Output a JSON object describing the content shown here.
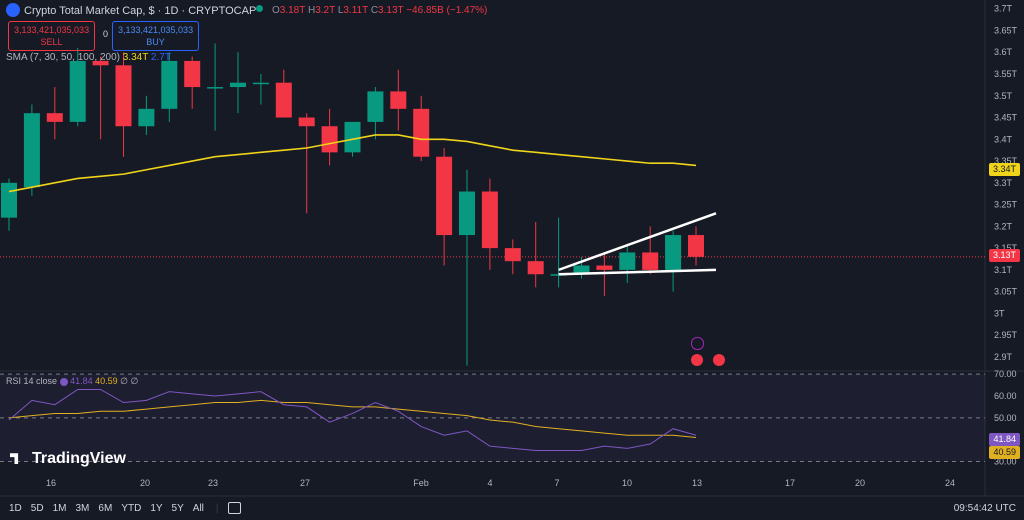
{
  "header": {
    "title": "Crypto Total Market Cap, $ · 1D · CRYPTOCAP",
    "ohlc": {
      "o_label": "O",
      "o": "3.18T",
      "h_label": "H",
      "h": "3.2T",
      "l_label": "L",
      "l": "3.11T",
      "c_label": "C",
      "c": "3.13T",
      "change": "−46.85B (−1.47%)"
    },
    "sell_price": "3,133,421,035,033",
    "sell_label": "SELL",
    "spread": "0",
    "buy_price": "3,133,421,035,033",
    "buy_label": "BUY",
    "sma_label": "SMA (7, 30, 50, 100, 200)",
    "sma_value1": "3.34T",
    "sma_value2": "2.7T"
  },
  "rsi": {
    "label": "RSI 14 close",
    "value1": "41.84",
    "value2": "40.59",
    "extra": "∅ ∅"
  },
  "watermark": "TradingView",
  "toolbar": {
    "ranges": [
      "1D",
      "5D",
      "1M",
      "3M",
      "6M",
      "YTD",
      "1Y",
      "5Y",
      "All"
    ],
    "time": "09:54:42 UTC"
  },
  "colors": {
    "up": "#089981",
    "down": "#f23645",
    "sma": "#f0d41a",
    "rsi": "#7e57c2",
    "rsi_ma": "#e0b020",
    "bg": "#161a25"
  },
  "chart_data": [
    {
      "type": "candlestick",
      "title": "Crypto Total Market Cap, $",
      "y_ticks": [
        "3.7T",
        "3.65T",
        "3.6T",
        "3.55T",
        "3.5T",
        "3.45T",
        "3.4T",
        "3.35T",
        "3.3T",
        "3.25T",
        "3.2T",
        "3.15T",
        "3.1T",
        "3.05T",
        "3T",
        "2.95T",
        "2.9T"
      ],
      "ylim": [
        2.87,
        3.72
      ],
      "x_ticks": [
        "16",
        "20",
        "23",
        "27",
        "Feb",
        "4",
        "7",
        "10",
        "13",
        "17",
        "20",
        "24"
      ],
      "current_price": "3.13T",
      "sma_current": "3.34T",
      "candles": [
        {
          "o": 3.22,
          "h": 3.31,
          "l": 3.19,
          "c": 3.3
        },
        {
          "o": 3.29,
          "h": 3.48,
          "l": 3.27,
          "c": 3.46
        },
        {
          "o": 3.46,
          "h": 3.52,
          "l": 3.4,
          "c": 3.44
        },
        {
          "o": 3.44,
          "h": 3.61,
          "l": 3.43,
          "c": 3.58
        },
        {
          "o": 3.58,
          "h": 3.59,
          "l": 3.4,
          "c": 3.57
        },
        {
          "o": 3.57,
          "h": 3.6,
          "l": 3.36,
          "c": 3.43
        },
        {
          "o": 3.43,
          "h": 3.5,
          "l": 3.41,
          "c": 3.47
        },
        {
          "o": 3.47,
          "h": 3.6,
          "l": 3.44,
          "c": 3.58
        },
        {
          "o": 3.58,
          "h": 3.59,
          "l": 3.47,
          "c": 3.52
        },
        {
          "o": 3.52,
          "h": 3.62,
          "l": 3.42,
          "c": 3.52
        },
        {
          "o": 3.52,
          "h": 3.6,
          "l": 3.46,
          "c": 3.53
        },
        {
          "o": 3.53,
          "h": 3.55,
          "l": 3.48,
          "c": 3.53
        },
        {
          "o": 3.53,
          "h": 3.56,
          "l": 3.45,
          "c": 3.45
        },
        {
          "o": 3.45,
          "h": 3.46,
          "l": 3.23,
          "c": 3.43
        },
        {
          "o": 3.43,
          "h": 3.47,
          "l": 3.34,
          "c": 3.37
        },
        {
          "o": 3.37,
          "h": 3.44,
          "l": 3.36,
          "c": 3.44
        },
        {
          "o": 3.44,
          "h": 3.52,
          "l": 3.4,
          "c": 3.51
        },
        {
          "o": 3.51,
          "h": 3.56,
          "l": 3.42,
          "c": 3.47
        },
        {
          "o": 3.47,
          "h": 3.5,
          "l": 3.35,
          "c": 3.36
        },
        {
          "o": 3.36,
          "h": 3.38,
          "l": 3.11,
          "c": 3.18
        },
        {
          "o": 3.18,
          "h": 3.33,
          "l": 2.88,
          "c": 3.28
        },
        {
          "o": 3.28,
          "h": 3.31,
          "l": 3.1,
          "c": 3.15
        },
        {
          "o": 3.15,
          "h": 3.17,
          "l": 3.09,
          "c": 3.12
        },
        {
          "o": 3.12,
          "h": 3.21,
          "l": 3.06,
          "c": 3.09
        },
        {
          "o": 3.09,
          "h": 3.22,
          "l": 3.06,
          "c": 3.09
        },
        {
          "o": 3.09,
          "h": 3.13,
          "l": 3.08,
          "c": 3.11
        },
        {
          "o": 3.11,
          "h": 3.14,
          "l": 3.04,
          "c": 3.1
        },
        {
          "o": 3.1,
          "h": 3.16,
          "l": 3.07,
          "c": 3.14
        },
        {
          "o": 3.14,
          "h": 3.2,
          "l": 3.09,
          "c": 3.1
        },
        {
          "o": 3.1,
          "h": 3.19,
          "l": 3.05,
          "c": 3.18
        },
        {
          "o": 3.18,
          "h": 3.2,
          "l": 3.11,
          "c": 3.13
        }
      ],
      "sma": [
        3.28,
        3.29,
        3.3,
        3.31,
        3.315,
        3.32,
        3.33,
        3.34,
        3.35,
        3.36,
        3.365,
        3.37,
        3.375,
        3.38,
        3.39,
        3.4,
        3.41,
        3.41,
        3.4,
        3.4,
        3.395,
        3.385,
        3.375,
        3.37,
        3.365,
        3.36,
        3.355,
        3.35,
        3.345,
        3.345,
        3.34
      ],
      "trendlines": [
        {
          "from": [
            24,
            3.1
          ],
          "to": [
            30,
            3.23
          ]
        },
        {
          "from": [
            24,
            3.09
          ],
          "to": [
            30,
            3.1
          ]
        }
      ]
    },
    {
      "type": "line",
      "title": "RSI 14 close",
      "y_ticks": [
        "70.00",
        "60.00",
        "50.00",
        "40.00",
        "30.00"
      ],
      "ylim": [
        27,
        71
      ],
      "rsi": [
        49,
        58,
        56,
        63,
        63,
        57,
        58,
        62,
        61,
        60,
        61,
        62,
        56,
        55,
        48,
        52,
        57,
        53,
        46,
        42,
        44,
        37,
        36,
        35,
        35,
        35,
        37,
        36,
        38,
        45,
        42
      ],
      "rsi_ma": [
        50,
        51,
        52,
        52,
        53,
        53,
        54,
        55,
        56,
        57,
        57,
        58,
        57,
        57,
        56,
        55,
        55,
        54,
        53,
        52,
        51,
        49,
        48,
        46,
        45,
        44,
        43,
        42,
        42,
        42,
        41
      ]
    }
  ]
}
